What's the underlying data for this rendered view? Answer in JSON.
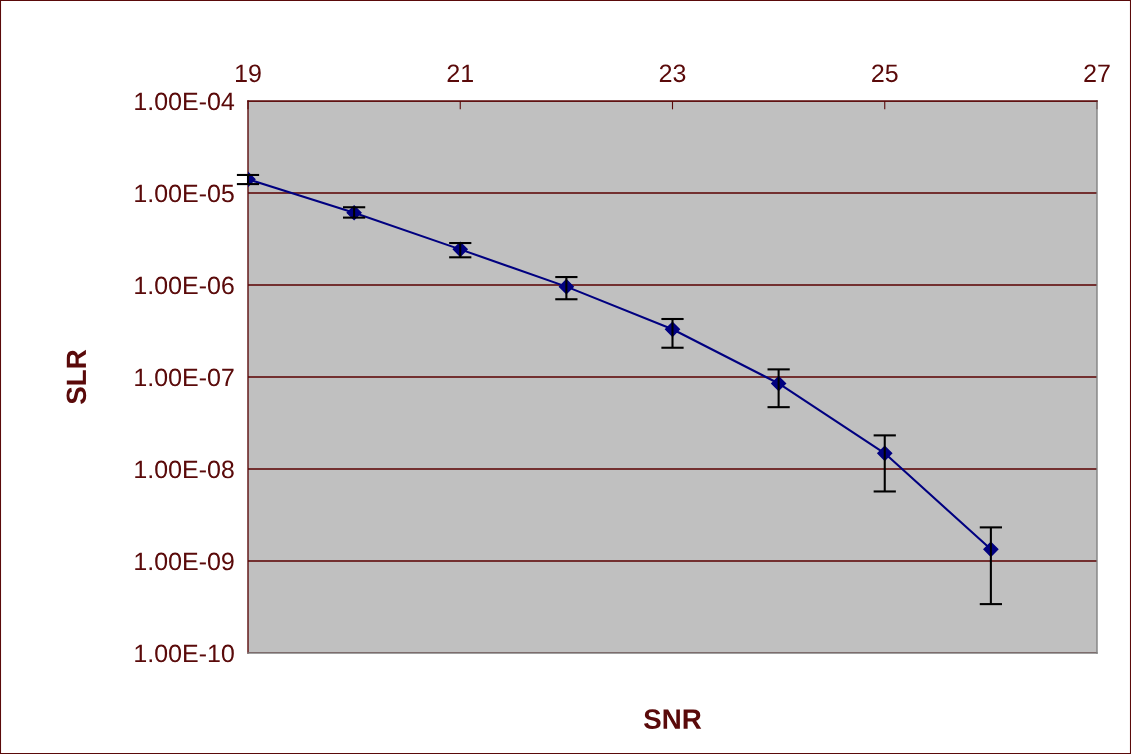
{
  "chart_data": {
    "type": "line",
    "xlabel": "SNR",
    "ylabel": "SLR",
    "x": [
      19,
      20,
      21,
      22,
      23,
      24,
      25,
      26
    ],
    "series": [
      {
        "color": "#000080",
        "values": [
          1.41e-05,
          6.1e-06,
          2.44e-06,
          9.6e-07,
          3.3e-07,
          8.5e-08,
          1.48e-08,
          1.34e-09
        ],
        "errors": [
          [
            1.25e-05,
            1.57e-05
          ],
          [
            5.4e-06,
            7e-06
          ],
          [
            2e-06,
            2.86e-06
          ],
          [
            7e-07,
            1.22e-06
          ],
          [
            2.08e-07,
            4.27e-07
          ],
          [
            4.7e-08,
            1.21e-07
          ],
          [
            5.7e-09,
            2.32e-08
          ],
          [
            3.4e-10,
            2.32e-09
          ]
        ]
      }
    ],
    "marker": "diamond",
    "line_style": "solid",
    "log": "y",
    "grid": "y",
    "xlim": [
      19,
      27
    ],
    "xticks": [
      19,
      21,
      23,
      25,
      27
    ],
    "ylim": [
      1e-10,
      0.0001
    ],
    "yticks": [
      {
        "value": 1e-10,
        "label": "1.00E-10"
      },
      {
        "value": 1e-09,
        "label": "1.00E-09"
      },
      {
        "value": 1e-08,
        "label": "1.00E-08"
      },
      {
        "value": 1e-07,
        "label": "1.00E-07"
      },
      {
        "value": 1e-06,
        "label": "1.00E-06"
      },
      {
        "value": 1e-05,
        "label": "1.00E-05"
      },
      {
        "value": 0.0001,
        "label": "1.00E-04"
      }
    ]
  }
}
